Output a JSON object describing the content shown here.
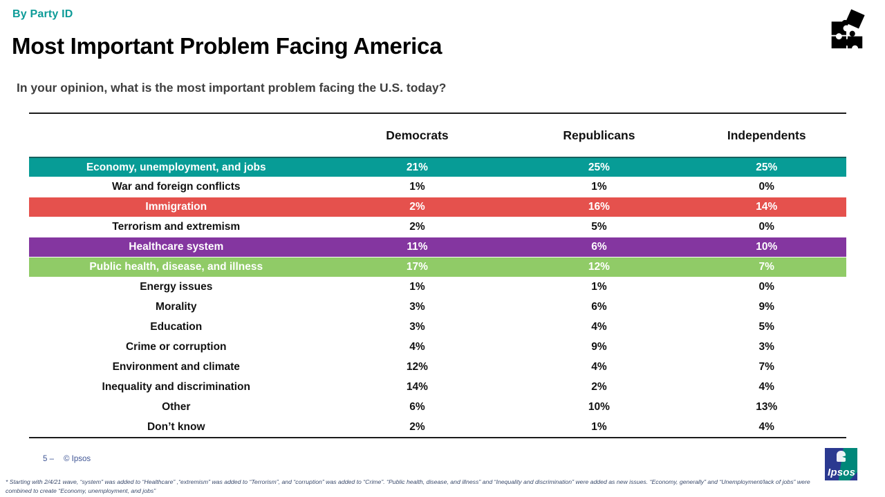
{
  "slide": {
    "kicker": "By Party ID",
    "title": "Most Important Problem Facing America",
    "question": "In your opinion, what is the most important problem facing the U.S. today?",
    "page_label": "5 –",
    "copyright": "© Ipsos",
    "footnote_line1": "* Starting with 2/4/21 wave, “system” was added to “Healthcare” ,“extremism” was added to “Terrorism”, and “corruption” was added to “Crime”. “Public health, disease, and illness” and “Inequality and discrimination” were added as new issues. “Economy, generally” and “Unemployment/lack of jobs” were",
    "footnote_line2": "combined to create “Economy, unemployment, and jobs”",
    "logo_text": "Ipsos"
  },
  "colors": {
    "kicker_teal": "#0d9b98",
    "row_teal": "#079c96",
    "row_red": "#e5514d",
    "row_purple": "#8436a0",
    "row_green": "#90cb67",
    "footer_blue": "#3e5494",
    "logo_navy": "#2b3990",
    "logo_teal": "#008779"
  },
  "table": {
    "columns": [
      "Democrats",
      "Republicans",
      "Independents"
    ],
    "rows": [
      {
        "label": "Economy, unemployment, and jobs",
        "values": [
          "21%",
          "25%",
          "25%"
        ],
        "highlight": "#079c96"
      },
      {
        "label": "War and foreign conflicts",
        "values": [
          "1%",
          "1%",
          "0%"
        ],
        "highlight": null
      },
      {
        "label": "Immigration",
        "values": [
          "2%",
          "16%",
          "14%"
        ],
        "highlight": "#e5514d"
      },
      {
        "label": "Terrorism and extremism",
        "values": [
          "2%",
          "5%",
          "0%"
        ],
        "highlight": null
      },
      {
        "label": "Healthcare system",
        "values": [
          "11%",
          "6%",
          "10%"
        ],
        "highlight": "#8436a0"
      },
      {
        "label": "Public health, disease, and illness",
        "values": [
          "17%",
          "12%",
          "7%"
        ],
        "highlight": "#90cb67"
      },
      {
        "label": "Energy issues",
        "values": [
          "1%",
          "1%",
          "0%"
        ],
        "highlight": null
      },
      {
        "label": "Morality",
        "values": [
          "3%",
          "6%",
          "9%"
        ],
        "highlight": null
      },
      {
        "label": "Education",
        "values": [
          "3%",
          "4%",
          "5%"
        ],
        "highlight": null
      },
      {
        "label": "Crime or corruption",
        "values": [
          "4%",
          "9%",
          "3%"
        ],
        "highlight": null
      },
      {
        "label": "Environment and climate",
        "values": [
          "12%",
          "4%",
          "7%"
        ],
        "highlight": null
      },
      {
        "label": "Inequality and discrimination",
        "values": [
          "14%",
          "2%",
          "4%"
        ],
        "highlight": null
      },
      {
        "label": "Other",
        "values": [
          "6%",
          "10%",
          "13%"
        ],
        "highlight": null
      },
      {
        "label": "Don’t know",
        "values": [
          "2%",
          "1%",
          "4%"
        ],
        "highlight": null
      }
    ]
  },
  "chart_data": {
    "type": "table",
    "title": "Most Important Problem Facing America",
    "subtitle": "In your opinion, what is the most important problem facing the U.S. today?",
    "unit": "%",
    "categories": [
      "Economy, unemployment, and jobs",
      "War and foreign conflicts",
      "Immigration",
      "Terrorism and extremism",
      "Healthcare system",
      "Public health, disease, and illness",
      "Energy issues",
      "Morality",
      "Education",
      "Crime or corruption",
      "Environment and climate",
      "Inequality and discrimination",
      "Other",
      "Don’t know"
    ],
    "series": [
      {
        "name": "Democrats",
        "values": [
          21,
          1,
          2,
          2,
          11,
          17,
          1,
          3,
          3,
          4,
          12,
          14,
          6,
          2
        ]
      },
      {
        "name": "Republicans",
        "values": [
          25,
          1,
          16,
          5,
          6,
          12,
          1,
          6,
          4,
          9,
          4,
          2,
          10,
          1
        ]
      },
      {
        "name": "Independents",
        "values": [
          25,
          0,
          14,
          0,
          10,
          7,
          0,
          9,
          5,
          3,
          7,
          4,
          13,
          4
        ]
      }
    ],
    "highlighted_categories": [
      {
        "category": "Economy, unemployment, and jobs",
        "color": "#079c96"
      },
      {
        "category": "Immigration",
        "color": "#e5514d"
      },
      {
        "category": "Healthcare system",
        "color": "#8436a0"
      },
      {
        "category": "Public health, disease, and illness",
        "color": "#90cb67"
      }
    ]
  }
}
